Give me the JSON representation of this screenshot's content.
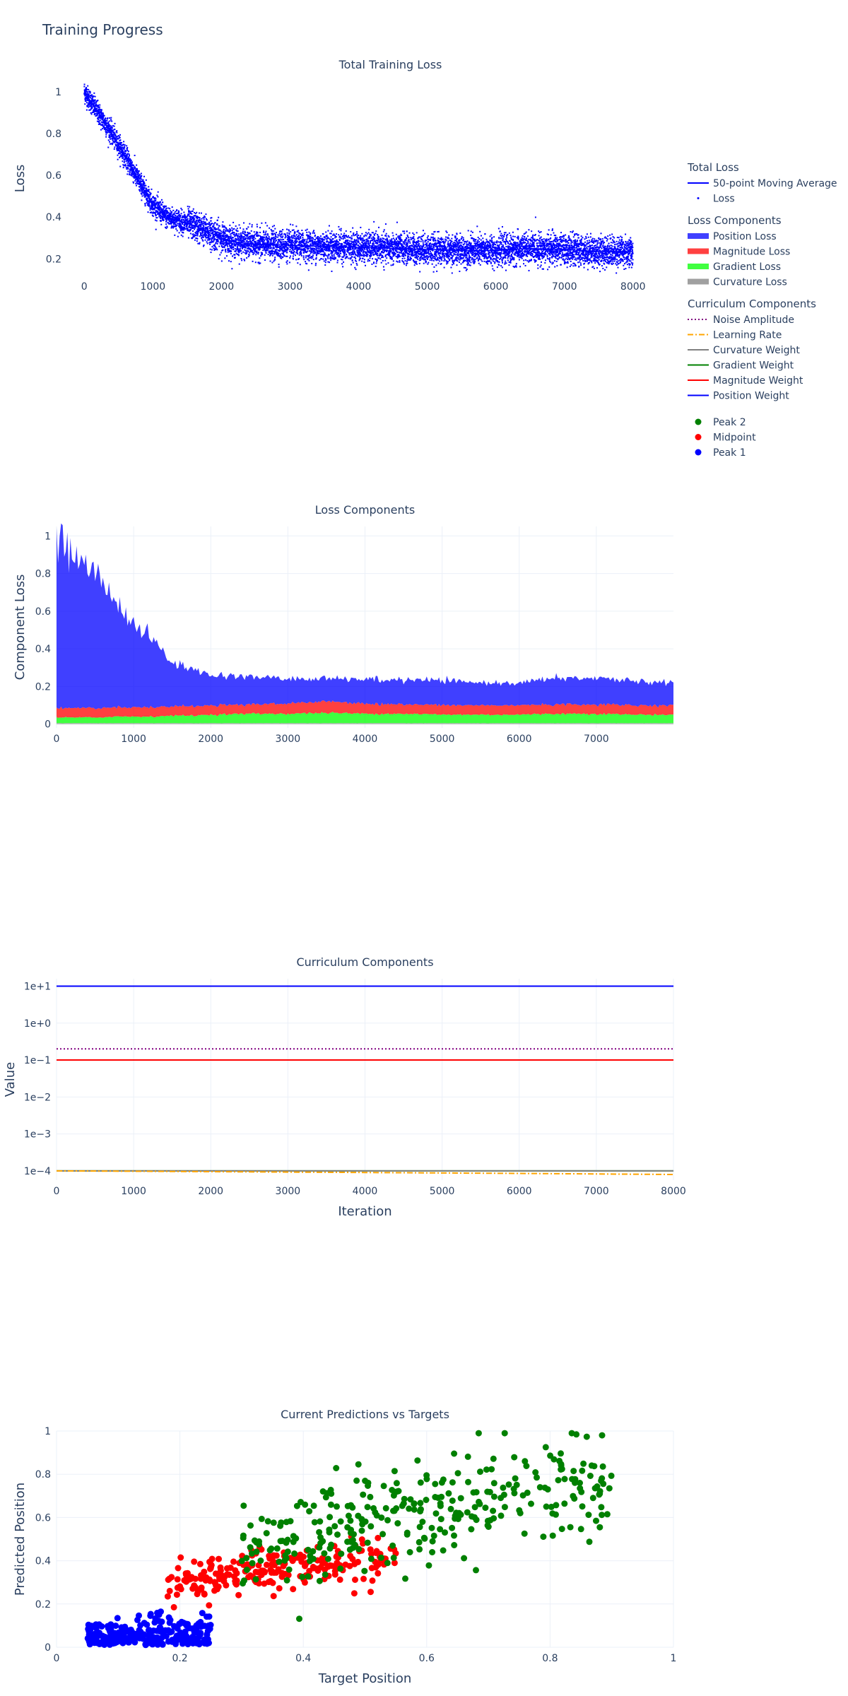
{
  "figure_title": "Training Progress",
  "colors": {
    "ma_line": "#0000ff",
    "loss_points": "#0000ff",
    "position_loss": "#0000ff",
    "magnitude_loss": "#ff0000",
    "gradient_loss": "#00ff00",
    "curvature_loss": "#808080",
    "noise_amplitude": "#800080",
    "learning_rate": "#ffa500",
    "curvature_weight": "#808080",
    "gradient_weight": "#008000",
    "magnitude_weight": "#ff0000",
    "position_weight": "#0000ff",
    "peak2": "#008000",
    "midpoint": "#ff0000",
    "peak1": "#0000ff",
    "grid": "#ebf0f8",
    "text": "#2a3f5f"
  },
  "legend": {
    "groups": [
      {
        "title": "Total Loss",
        "items": [
          {
            "label": "50-point Moving Average",
            "kind": "line",
            "color_key": "ma_line",
            "dash": "solid"
          },
          {
            "label": "Loss",
            "kind": "dot",
            "color_key": "loss_points"
          }
        ]
      },
      {
        "title": "Loss Components",
        "items": [
          {
            "label": "Position Loss",
            "kind": "bar",
            "color_key": "position_loss"
          },
          {
            "label": "Magnitude Loss",
            "kind": "bar",
            "color_key": "magnitude_loss"
          },
          {
            "label": "Gradient Loss",
            "kind": "bar",
            "color_key": "gradient_loss"
          },
          {
            "label": "Curvature Loss",
            "kind": "bar",
            "color_key": "curvature_loss"
          }
        ]
      },
      {
        "title": "Curriculum Components",
        "items": [
          {
            "label": "Noise Amplitude",
            "kind": "line",
            "color_key": "noise_amplitude",
            "dash": "dot"
          },
          {
            "label": "Learning Rate",
            "kind": "line",
            "color_key": "learning_rate",
            "dash": "dashdot"
          },
          {
            "label": "Curvature Weight",
            "kind": "line",
            "color_key": "curvature_weight",
            "dash": "solid"
          },
          {
            "label": "Gradient Weight",
            "kind": "line",
            "color_key": "gradient_weight",
            "dash": "solid"
          },
          {
            "label": "Magnitude Weight",
            "kind": "line",
            "color_key": "magnitude_weight",
            "dash": "solid"
          },
          {
            "label": "Position Weight",
            "kind": "line",
            "color_key": "position_weight",
            "dash": "solid"
          }
        ]
      },
      {
        "title": "",
        "items": [
          {
            "label": "Peak 2",
            "kind": "marker",
            "color_key": "peak2"
          },
          {
            "label": "Midpoint",
            "kind": "marker",
            "color_key": "midpoint"
          },
          {
            "label": "Peak 1",
            "kind": "marker",
            "color_key": "peak1"
          }
        ]
      }
    ]
  },
  "chart_data": [
    {
      "id": "total-loss",
      "type": "scatter",
      "title": "Total Training Loss",
      "xlabel": "",
      "ylabel": "Loss",
      "xlim": [
        -250,
        8250
      ],
      "ylim": [
        0.12,
        1.05
      ],
      "xticks": [
        0,
        1000,
        2000,
        3000,
        4000,
        5000,
        6000,
        7000,
        8000
      ],
      "xtick_labels": [
        "0",
        "1000",
        "2000",
        "3000",
        "4000",
        "5000",
        "6000",
        "7000",
        "8000"
      ],
      "yticks": [
        0.2,
        0.4,
        0.6,
        0.8,
        1
      ],
      "ytick_labels": [
        "0.2",
        "0.4",
        "0.6",
        "0.8",
        "1"
      ],
      "grid": false,
      "series": [
        {
          "name": "Loss",
          "mode": "markers",
          "color_key": "loss_points",
          "trend_x": [
            0,
            200,
            400,
            600,
            800,
            1000,
            1200,
            1400,
            1600,
            1800,
            2000,
            2200,
            2500,
            3000,
            3500,
            4000,
            4500,
            5000,
            5500,
            6000,
            6500,
            7000,
            7500,
            8000
          ],
          "trend_y": [
            1.0,
            0.9,
            0.8,
            0.69,
            0.57,
            0.46,
            0.4,
            0.38,
            0.36,
            0.33,
            0.3,
            0.28,
            0.27,
            0.265,
            0.26,
            0.255,
            0.25,
            0.245,
            0.24,
            0.24,
            0.25,
            0.245,
            0.235,
            0.235
          ],
          "spread": 0.035,
          "n_points": 8000
        },
        {
          "name": "50-point Moving Average",
          "mode": "lines",
          "color_key": "ma_line",
          "x": [
            0,
            8000
          ],
          "y_from": "trend"
        }
      ]
    },
    {
      "id": "loss-components",
      "type": "area",
      "stacked": true,
      "title": "Loss Components",
      "xlabel": "",
      "ylabel": "Component Loss",
      "xlim": [
        0,
        8000
      ],
      "ylim": [
        -0.02,
        1.05
      ],
      "xticks": [
        0,
        1000,
        2000,
        3000,
        4000,
        5000,
        6000,
        7000
      ],
      "xtick_labels": [
        "0",
        "1000",
        "2000",
        "3000",
        "4000",
        "5000",
        "6000",
        "7000"
      ],
      "yticks": [
        0,
        0.2,
        0.4,
        0.6,
        0.8,
        1
      ],
      "ytick_labels": [
        "0",
        "0.2",
        "0.4",
        "0.6",
        "0.8",
        "1"
      ],
      "grid": true,
      "x": [
        0,
        250,
        500,
        750,
        1000,
        1250,
        1500,
        1750,
        2000,
        2500,
        3000,
        3500,
        4000,
        4500,
        5000,
        5500,
        6000,
        6500,
        7000,
        7500,
        8000
      ],
      "series": [
        {
          "name": "Curvature Loss",
          "color_key": "curvature_loss",
          "values": [
            0.005,
            0.005,
            0.005,
            0.005,
            0.005,
            0.005,
            0.005,
            0.005,
            0.005,
            0.005,
            0.005,
            0.005,
            0.005,
            0.005,
            0.005,
            0.005,
            0.005,
            0.005,
            0.005,
            0.005,
            0.005
          ]
        },
        {
          "name": "Gradient Loss",
          "color_key": "gradient_loss",
          "values": [
            0.03,
            0.03,
            0.03,
            0.035,
            0.035,
            0.035,
            0.04,
            0.04,
            0.045,
            0.05,
            0.05,
            0.055,
            0.05,
            0.05,
            0.045,
            0.045,
            0.045,
            0.05,
            0.05,
            0.045,
            0.045
          ]
        },
        {
          "name": "Magnitude Loss",
          "color_key": "magnitude_loss",
          "values": [
            0.05,
            0.05,
            0.05,
            0.05,
            0.05,
            0.05,
            0.05,
            0.05,
            0.05,
            0.05,
            0.055,
            0.06,
            0.055,
            0.05,
            0.05,
            0.05,
            0.05,
            0.05,
            0.05,
            0.05,
            0.05
          ]
        },
        {
          "name": "Position Loss",
          "color_key": "position_loss",
          "values": [
            0.9,
            0.8,
            0.72,
            0.58,
            0.44,
            0.36,
            0.23,
            0.2,
            0.16,
            0.15,
            0.13,
            0.12,
            0.13,
            0.13,
            0.13,
            0.12,
            0.12,
            0.14,
            0.14,
            0.13,
            0.12
          ]
        }
      ]
    },
    {
      "id": "curriculum",
      "type": "line",
      "title": "Curriculum Components",
      "xlabel": "Iteration",
      "ylabel": "Value",
      "log_y": true,
      "xlim": [
        0,
        8000
      ],
      "ylim_log10": [
        -4.25,
        1.2
      ],
      "xticks": [
        0,
        1000,
        2000,
        3000,
        4000,
        5000,
        6000,
        7000,
        8000
      ],
      "xtick_labels": [
        "0",
        "1000",
        "2000",
        "3000",
        "4000",
        "5000",
        "6000",
        "7000",
        "8000"
      ],
      "yticks_log10": [
        -4,
        -3,
        -2,
        -1,
        0,
        1
      ],
      "ytick_labels": [
        "1e−4",
        "1e−3",
        "1e−2",
        "1e−1",
        "1e+0",
        "1e+1"
      ],
      "grid": true,
      "series": [
        {
          "name": "Position Weight",
          "color_key": "position_weight",
          "dash": "solid",
          "x": [
            0,
            8000
          ],
          "y": [
            10,
            10
          ]
        },
        {
          "name": "Noise Amplitude",
          "color_key": "noise_amplitude",
          "dash": "dot",
          "x": [
            0,
            8000
          ],
          "y": [
            0.2,
            0.2
          ]
        },
        {
          "name": "Magnitude Weight",
          "color_key": "magnitude_weight",
          "dash": "solid",
          "x": [
            0,
            8000
          ],
          "y": [
            0.1,
            0.1
          ]
        },
        {
          "name": "Gradient Weight",
          "color_key": "gradient_weight",
          "dash": "solid",
          "x": [
            0,
            8000
          ],
          "y": [
            0.0001,
            0.0001
          ]
        },
        {
          "name": "Curvature Weight",
          "color_key": "curvature_weight",
          "dash": "solid",
          "x": [
            0,
            8000
          ],
          "y": [
            0.0001,
            0.0001
          ]
        },
        {
          "name": "Learning Rate",
          "color_key": "learning_rate",
          "dash": "dashdot",
          "x": [
            0,
            2000,
            4000,
            6000,
            8000
          ],
          "y": [
            0.0001,
            9.55e-05,
            9.05e-05,
            8.55e-05,
            8e-05
          ]
        }
      ]
    },
    {
      "id": "predictions",
      "type": "scatter",
      "title": "Current Predictions vs Targets",
      "xlabel": "Target Position",
      "ylabel": "Predicted Position",
      "xlim": [
        0,
        1
      ],
      "ylim": [
        0,
        1
      ],
      "xticks": [
        0,
        0.2,
        0.4,
        0.6,
        0.8,
        1
      ],
      "xtick_labels": [
        "0",
        "0.2",
        "0.4",
        "0.6",
        "0.8",
        "1"
      ],
      "yticks": [
        0,
        0.2,
        0.4,
        0.6,
        0.8,
        1
      ],
      "ytick_labels": [
        "0",
        "0.2",
        "0.4",
        "0.6",
        "0.8",
        "1"
      ],
      "grid": true,
      "series": [
        {
          "name": "Peak 1",
          "color_key": "peak1",
          "x_range": [
            0.05,
            0.25
          ],
          "y_center": 0.05,
          "y_spread": 0.045,
          "y_slope": 0.15,
          "n": 260
        },
        {
          "name": "Midpoint",
          "color_key": "midpoint",
          "x_range": [
            0.18,
            0.55
          ],
          "y_center": 0.36,
          "y_spread": 0.05,
          "y_slope": 0.35,
          "n": 230
        },
        {
          "name": "Peak 2",
          "color_key": "peak2",
          "x_range": [
            0.3,
            0.9
          ],
          "y_center": 0.62,
          "y_spread": 0.12,
          "y_slope": 0.55,
          "n": 320
        }
      ]
    }
  ]
}
